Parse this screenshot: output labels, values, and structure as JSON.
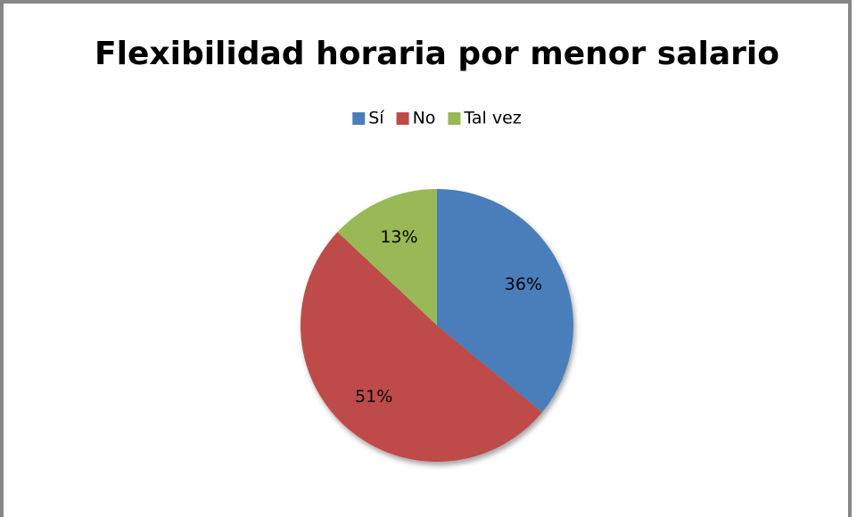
{
  "chart_data": {
    "type": "pie",
    "title": "Flexibilidad horaria por menor salario",
    "categories": [
      "Sí",
      "No",
      "Tal vez"
    ],
    "values": [
      36,
      51,
      13
    ],
    "value_labels": [
      "36%",
      "51%",
      "13%"
    ],
    "colors": [
      "#4a7ebb",
      "#be4b48",
      "#98b954"
    ],
    "legend": "top"
  }
}
